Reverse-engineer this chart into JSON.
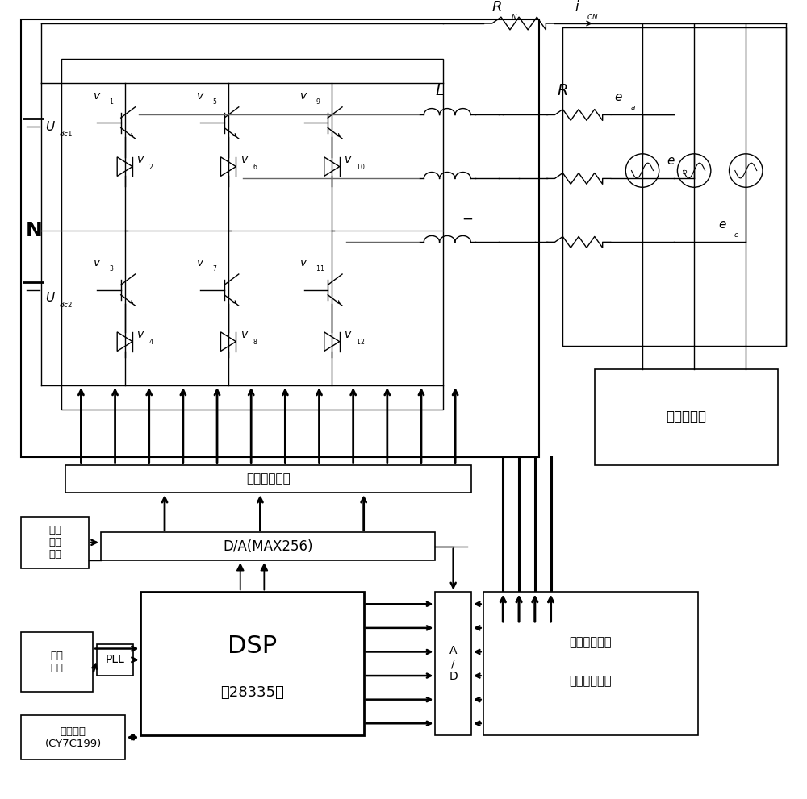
{
  "bg_color": "#ffffff",
  "line_color": "#000000",
  "labels": {
    "N": "N",
    "gate_pulse": "门极驱动脉冲",
    "DA_box": "D/A(MAX256)",
    "voltage_box": "电压\n基准\n电路",
    "DSP_line1": "DSP",
    "DSP_line2": "（28335）",
    "AD_box": "A\n/\nD",
    "zero_cross": "过零\n检测",
    "PLL_box": "PLL",
    "storage_box": "存储单元\n(CY7C199)",
    "current_detect_line1": "电流检测信号",
    "current_detect_line2": "调理电路单元",
    "nonlinear": "非线性负载"
  }
}
